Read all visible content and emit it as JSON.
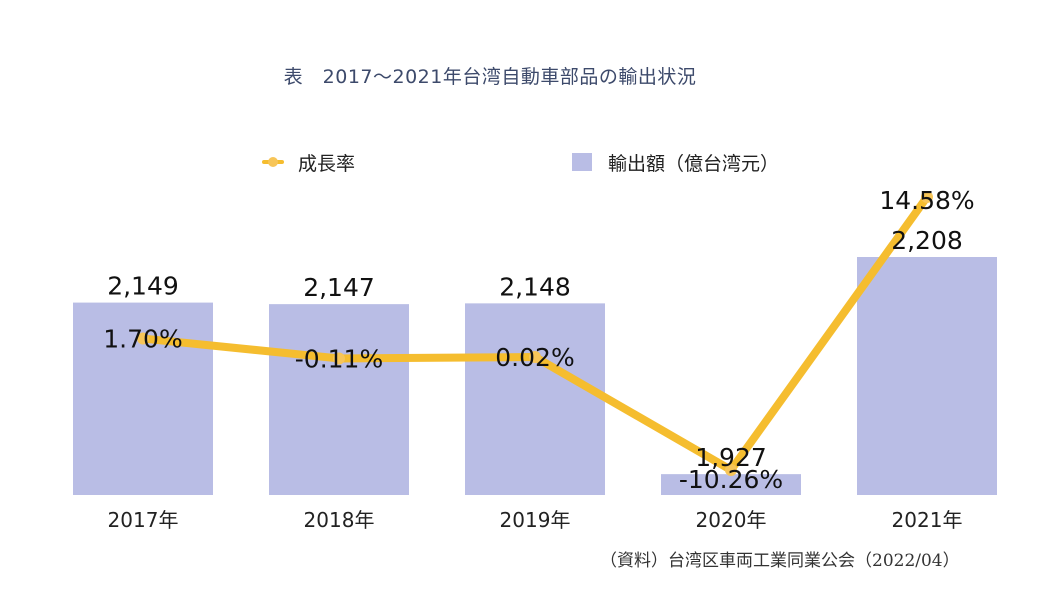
{
  "title": "表　2017～2021年台湾自動車部品の輸出状況",
  "legend": {
    "line_label": "成長率",
    "bar_label": "輸出額（億台湾元）"
  },
  "source": "（資料）台湾区車両工業同業公会（2022/04）",
  "colors": {
    "bar": "#b9bde5",
    "line": "#f5bd2f",
    "marker": "#f7c558",
    "title": "#3d4a6b"
  },
  "chart_data": {
    "type": "bar",
    "title": "表　2017～2021年台湾自動車部品の輸出状況",
    "categories": [
      "2017年",
      "2018年",
      "2019年",
      "2020年",
      "2021年"
    ],
    "series": [
      {
        "name": "輸出額（億台湾元）",
        "type": "bar",
        "values": [
          2149,
          2147,
          2148,
          1927,
          2208
        ],
        "labels": [
          "2,149",
          "2,147",
          "2,148",
          "1,927",
          "2,208"
        ]
      },
      {
        "name": "成長率",
        "type": "line",
        "values": [
          1.7,
          -0.11,
          0.02,
          -10.26,
          14.58
        ],
        "labels": [
          "1.70%",
          "-0.11%",
          "0.02%",
          "-10.26%",
          "14.58%"
        ]
      }
    ],
    "xlabel": "",
    "ylabel": "",
    "bar_axis_range": [
      1900,
      2220
    ],
    "line_axis_range": [
      -12,
      16
    ],
    "grid": false,
    "legend_position": "top"
  }
}
